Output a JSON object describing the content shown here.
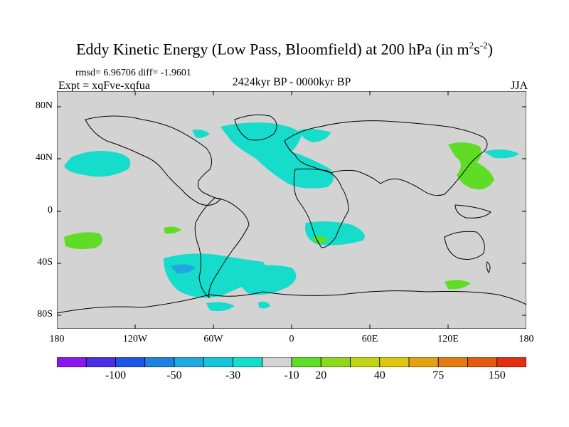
{
  "title": {
    "main": "Eddy Kinetic Energy (Low Pass, Bloomfield) at 200 hPa (in m",
    "sup1": "2",
    "mid": "s",
    "sup2": "-2",
    "end": ")"
  },
  "stats": "rmsd= 6.96706 diff= -1.9601",
  "experiment": "Expt = xqFve-xqfua",
  "period": "2424kyr BP - 0000kyr BP",
  "season": "JJA",
  "map": {
    "lat_labels": [
      "80N",
      "40N",
      "0",
      "40S",
      "80S"
    ],
    "lon_labels": [
      "180",
      "120W",
      "60W",
      "0",
      "60E",
      "120E",
      "180"
    ],
    "background_color": "#d3d3d3"
  },
  "colorbar": {
    "colors": [
      "#8a16f0",
      "#4a2ee6",
      "#1e56e3",
      "#1e82e0",
      "#1ea8df",
      "#17c4dc",
      "#15dccb",
      "#d3d3d3",
      "#5fdc26",
      "#8ed71c",
      "#c2d514",
      "#e0c60e",
      "#e4a210",
      "#e47a10",
      "#e45a10",
      "#e42e10"
    ],
    "labels": [
      "-100",
      "-50",
      "-30",
      "-10",
      "20",
      "40",
      "75",
      "150"
    ]
  }
}
